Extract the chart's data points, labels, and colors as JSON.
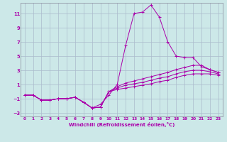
{
  "xlabel": "Windchill (Refroidissement éolien,°C)",
  "background_color": "#cce8e8",
  "grid_color": "#aabbcc",
  "line_color": "#aa00aa",
  "xlim": [
    -0.5,
    23.5
  ],
  "ylim": [
    -3.5,
    12.5
  ],
  "xticks": [
    0,
    1,
    2,
    3,
    4,
    5,
    6,
    7,
    8,
    9,
    10,
    11,
    12,
    13,
    14,
    15,
    16,
    17,
    18,
    19,
    20,
    21,
    22,
    23
  ],
  "yticks": [
    -3,
    -1,
    1,
    3,
    5,
    7,
    9,
    11
  ],
  "series": [
    [
      0,
      1,
      2,
      3,
      4,
      5,
      6,
      7,
      8,
      9,
      10,
      11,
      12,
      13,
      14,
      15,
      16,
      17,
      18,
      19,
      20,
      21,
      22,
      23
    ],
    [
      -0.5,
      -0.5,
      -1.2,
      -1.2,
      -1.0,
      -1.0,
      -0.8,
      -1.5,
      -2.3,
      -1.8,
      -0.5,
      1.0,
      6.5,
      11.0,
      11.2,
      12.2,
      10.5,
      7.0,
      5.0,
      4.8,
      4.8,
      3.5,
      3.1,
      2.7
    ],
    [
      -0.5,
      -0.5,
      -1.2,
      -1.2,
      -1.0,
      -1.0,
      -0.8,
      -1.5,
      -2.3,
      -2.2,
      0.0,
      0.7,
      1.2,
      1.5,
      1.8,
      2.1,
      2.4,
      2.7,
      3.1,
      3.4,
      3.7,
      3.7,
      3.1,
      2.7
    ],
    [
      -0.5,
      -0.5,
      -1.2,
      -1.2,
      -1.0,
      -1.0,
      -0.8,
      -1.5,
      -2.3,
      -2.2,
      0.0,
      0.5,
      0.9,
      1.1,
      1.3,
      1.6,
      1.9,
      2.1,
      2.5,
      2.8,
      3.0,
      3.0,
      2.8,
      2.5
    ],
    [
      -0.5,
      -0.5,
      -1.2,
      -1.2,
      -1.0,
      -1.0,
      -0.8,
      -1.5,
      -2.3,
      -2.2,
      0.0,
      0.3,
      0.5,
      0.7,
      0.9,
      1.1,
      1.4,
      1.6,
      2.0,
      2.3,
      2.5,
      2.5,
      2.5,
      2.3
    ]
  ]
}
